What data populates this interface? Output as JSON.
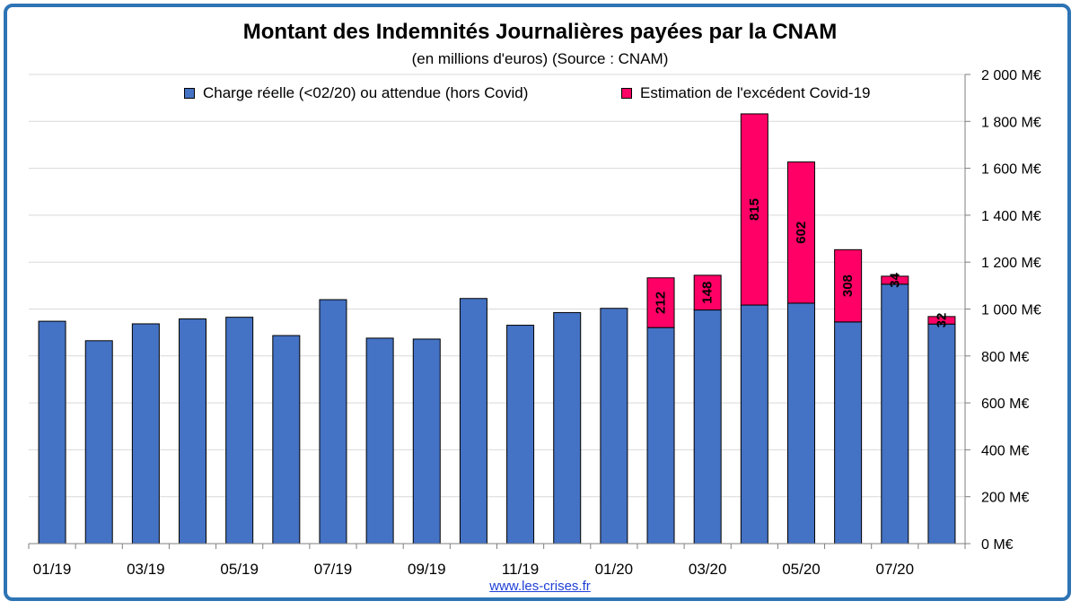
{
  "title": "Montant des Indemnités Journalières payées par la CNAM",
  "subtitle": "(en millions d'euros) (Source : CNAM)",
  "source_link": "www.les-crises.fr",
  "colors": {
    "frame": "#2e74b5",
    "base": "#4472c4",
    "covid": "#ff0066"
  },
  "chart_data": {
    "type": "bar",
    "stacked": true,
    "categories": [
      "01/19",
      "02/19",
      "03/19",
      "04/19",
      "05/19",
      "06/19",
      "07/19",
      "08/19",
      "09/19",
      "10/19",
      "11/19",
      "12/19",
      "01/20",
      "02/20",
      "03/20",
      "04/20",
      "05/20",
      "06/20",
      "07/20",
      "08/20"
    ],
    "x_tick_labels": [
      "01/19",
      "",
      "03/19",
      "",
      "05/19",
      "",
      "07/19",
      "",
      "09/19",
      "",
      "11/19",
      "",
      "01/20",
      "",
      "03/20",
      "",
      "05/20",
      "",
      "07/20",
      ""
    ],
    "series": [
      {
        "name": "Charge réelle (<02/20) ou attendue (hors Covid)",
        "color": "#4472c4",
        "values": [
          948,
          865,
          937,
          958,
          965,
          887,
          1040,
          876,
          872,
          1045,
          931,
          985,
          1003,
          921,
          996,
          1017,
          1025,
          945,
          1106,
          936
        ]
      },
      {
        "name": "Estimation de l'excédent Covid-19",
        "color": "#ff0066",
        "values": [
          0,
          0,
          0,
          0,
          0,
          0,
          0,
          0,
          0,
          0,
          0,
          0,
          0,
          212,
          148,
          815,
          602,
          308,
          34,
          32
        ]
      }
    ],
    "data_labels": [
      "",
      "",
      "",
      "",
      "",
      "",
      "",
      "",
      "",
      "",
      "",
      "",
      "",
      "212",
      "148",
      "815",
      "602",
      "308",
      "34",
      "32"
    ],
    "y_axis": {
      "position": "right",
      "ylim": [
        0,
        2000
      ],
      "ticks": [
        0,
        200,
        400,
        600,
        800,
        1000,
        1200,
        1400,
        1600,
        1800,
        2000
      ],
      "tick_labels": [
        "0 M€",
        "200 M€",
        "400 M€",
        "600 M€",
        "800 M€",
        "1 000 M€",
        "1 200 M€",
        "1 400 M€",
        "1 600 M€",
        "1 800 M€",
        "2 000 M€"
      ]
    },
    "grid": true,
    "legend_position": "top"
  }
}
